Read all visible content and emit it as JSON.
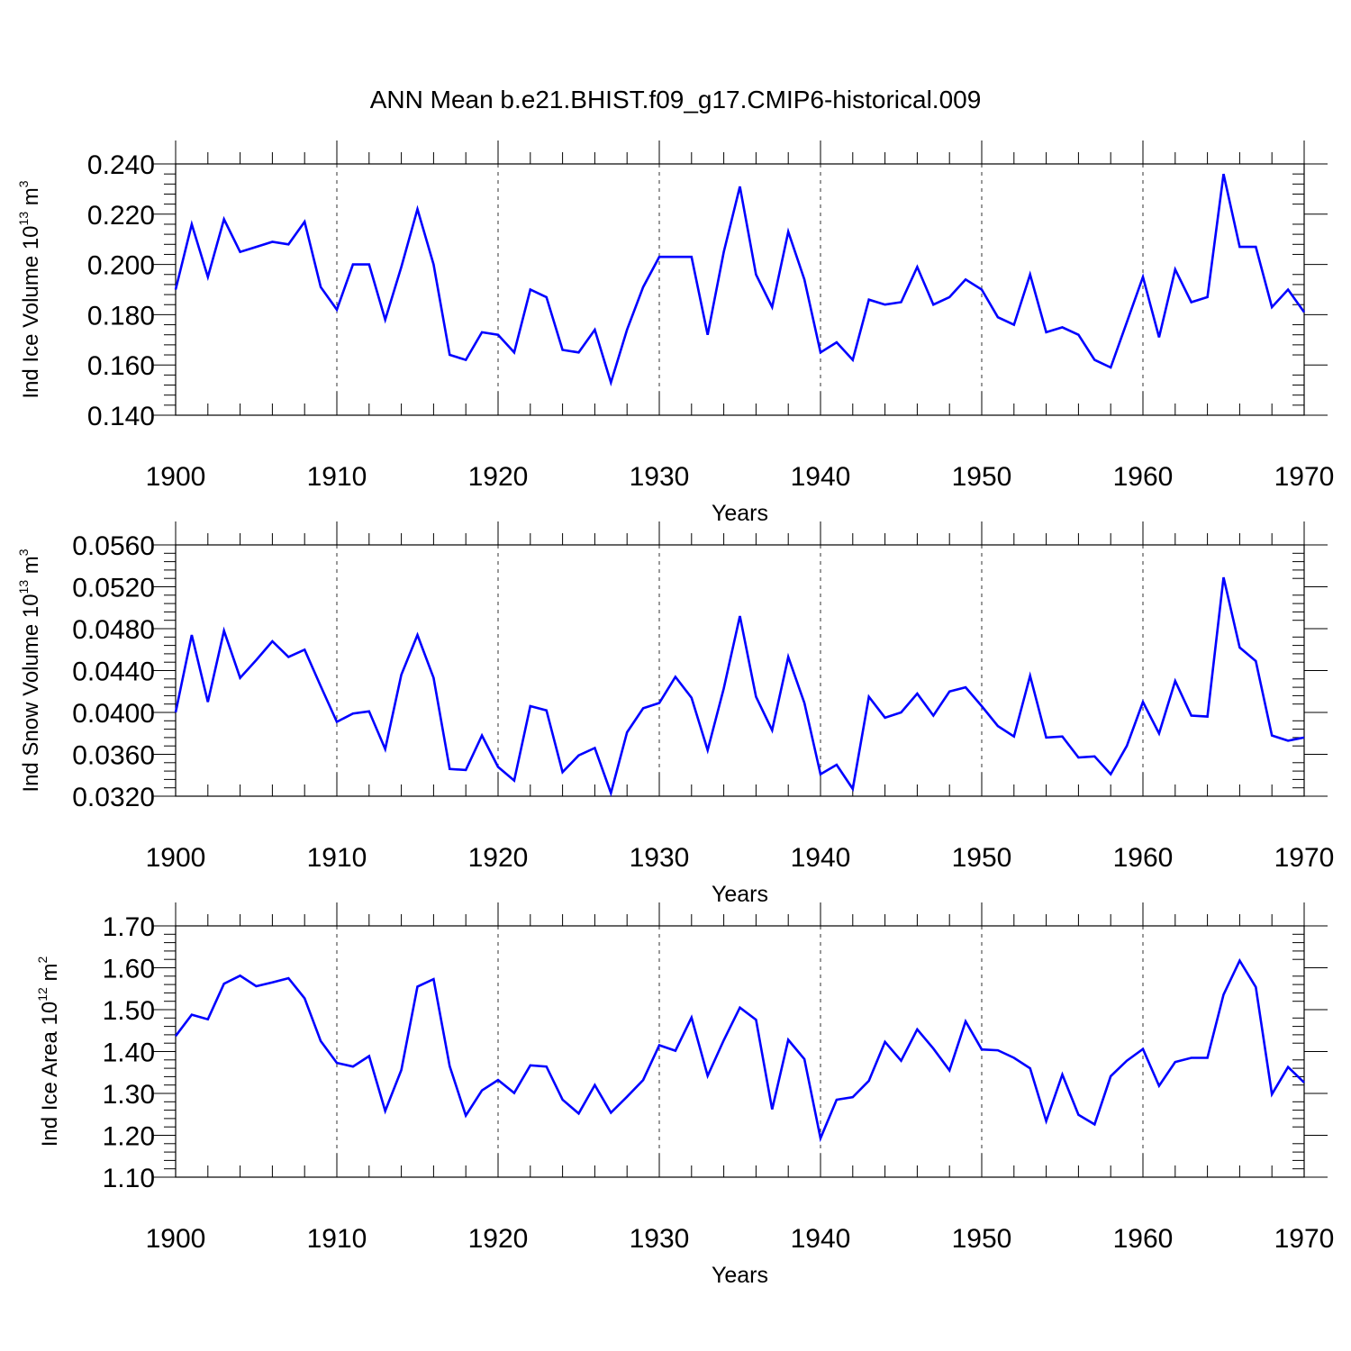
{
  "title": "ANN Mean b.e21.BHIST.f09_g17.CMIP6-historical.009",
  "colors": {
    "line": "#0000ff",
    "axis": "#000000",
    "grid": "#000000"
  },
  "chart_data": [
    {
      "type": "line",
      "title": "ANN Mean b.e21.BHIST.f09_g17.CMIP6-historical.009",
      "xlabel": "Years",
      "ylabel": {
        "base": "Ind Ice Volume 10",
        "sup1": "13",
        "mid": " m",
        "sup2": "3"
      },
      "xlim": [
        1900,
        1970
      ],
      "ylim": [
        0.14,
        0.24
      ],
      "xticks": [
        "1900",
        "1910",
        "1920",
        "1930",
        "1940",
        "1950",
        "1960",
        "1970"
      ],
      "yticks": [
        "0.140",
        "0.160",
        "0.180",
        "0.200",
        "0.220",
        "0.240"
      ],
      "grid": "vertical dashed at major x ticks",
      "x": [
        1900,
        1901,
        1902,
        1903,
        1904,
        1905,
        1906,
        1907,
        1908,
        1909,
        1910,
        1911,
        1912,
        1913,
        1914,
        1915,
        1916,
        1917,
        1918,
        1919,
        1920,
        1921,
        1922,
        1923,
        1924,
        1925,
        1926,
        1927,
        1928,
        1929,
        1930,
        1931,
        1932,
        1933,
        1934,
        1935,
        1936,
        1937,
        1938,
        1939,
        1940,
        1941,
        1942,
        1943,
        1944,
        1945,
        1946,
        1947,
        1948,
        1949,
        1950,
        1951,
        1952,
        1953,
        1954,
        1955,
        1956,
        1957,
        1958,
        1959,
        1960,
        1961,
        1962,
        1963,
        1964,
        1965,
        1966,
        1967,
        1968,
        1969,
        1970
      ],
      "series": [
        {
          "name": "Ind Ice Volume",
          "values": [
            0.19,
            0.216,
            0.195,
            0.218,
            0.205,
            0.207,
            0.209,
            0.208,
            0.217,
            0.191,
            0.182,
            0.2,
            0.2,
            0.178,
            0.199,
            0.222,
            0.2,
            0.164,
            0.162,
            0.173,
            0.172,
            0.165,
            0.19,
            0.187,
            0.166,
            0.165,
            0.174,
            0.153,
            0.174,
            0.191,
            0.203,
            0.203,
            0.203,
            0.172,
            0.205,
            0.231,
            0.196,
            0.183,
            0.213,
            0.194,
            0.165,
            0.169,
            0.162,
            0.186,
            0.184,
            0.185,
            0.199,
            0.184,
            0.187,
            0.194,
            0.19,
            0.179,
            0.176,
            0.196,
            0.173,
            0.175,
            0.172,
            0.162,
            0.159,
            0.177,
            0.195,
            0.171,
            0.198,
            0.185,
            0.187,
            0.236,
            0.207,
            0.207,
            0.183,
            0.19,
            0.181
          ]
        }
      ]
    },
    {
      "type": "line",
      "xlabel": "Years",
      "ylabel": {
        "base": "Ind Snow Volume 10",
        "sup1": "13",
        "mid": " m",
        "sup2": "3"
      },
      "xlim": [
        1900,
        1970
      ],
      "ylim": [
        0.032,
        0.056
      ],
      "xticks": [
        "1900",
        "1910",
        "1920",
        "1930",
        "1940",
        "1950",
        "1960",
        "1970"
      ],
      "yticks": [
        "0.0320",
        "0.0360",
        "0.0400",
        "0.0440",
        "0.0480",
        "0.0520",
        "0.0560"
      ],
      "grid": "vertical dashed at major x ticks",
      "x": [
        1900,
        1901,
        1902,
        1903,
        1904,
        1905,
        1906,
        1907,
        1908,
        1909,
        1910,
        1911,
        1912,
        1913,
        1914,
        1915,
        1916,
        1917,
        1918,
        1919,
        1920,
        1921,
        1922,
        1923,
        1924,
        1925,
        1926,
        1927,
        1928,
        1929,
        1930,
        1931,
        1932,
        1933,
        1934,
        1935,
        1936,
        1937,
        1938,
        1939,
        1940,
        1941,
        1942,
        1943,
        1944,
        1945,
        1946,
        1947,
        1948,
        1949,
        1950,
        1951,
        1952,
        1953,
        1954,
        1955,
        1956,
        1957,
        1958,
        1959,
        1960,
        1961,
        1962,
        1963,
        1964,
        1965,
        1966,
        1967,
        1968,
        1969,
        1970
      ],
      "series": [
        {
          "name": "Ind Snow Volume",
          "values": [
            0.04,
            0.0474,
            0.041,
            0.0478,
            0.0433,
            0.045,
            0.0468,
            0.0453,
            0.046,
            0.0425,
            0.0391,
            0.0399,
            0.0401,
            0.0365,
            0.0436,
            0.0474,
            0.0433,
            0.0346,
            0.0345,
            0.0378,
            0.0348,
            0.0335,
            0.0406,
            0.0402,
            0.0343,
            0.0359,
            0.0366,
            0.0323,
            0.0381,
            0.0404,
            0.0409,
            0.0434,
            0.0414,
            0.0364,
            0.0423,
            0.0492,
            0.0415,
            0.0383,
            0.0453,
            0.0409,
            0.0341,
            0.035,
            0.0327,
            0.0415,
            0.0395,
            0.04,
            0.0418,
            0.0397,
            0.042,
            0.0424,
            0.0406,
            0.0387,
            0.0377,
            0.0435,
            0.0376,
            0.0377,
            0.0357,
            0.0358,
            0.0341,
            0.0368,
            0.041,
            0.038,
            0.043,
            0.0397,
            0.0396,
            0.0529,
            0.0462,
            0.0449,
            0.0378,
            0.0373,
            0.0376
          ]
        }
      ]
    },
    {
      "type": "line",
      "xlabel": "Years",
      "ylabel": {
        "base": "Ind Ice Area 10",
        "sup1": "12",
        "mid": " m",
        "sup2": "2"
      },
      "xlim": [
        1900,
        1970
      ],
      "ylim": [
        1.1,
        1.7
      ],
      "xticks": [
        "1900",
        "1910",
        "1920",
        "1930",
        "1940",
        "1950",
        "1960",
        "1970"
      ],
      "yticks": [
        "1.10",
        "1.20",
        "1.30",
        "1.40",
        "1.50",
        "1.60",
        "1.70"
      ],
      "grid": "vertical dashed at major x ticks",
      "x": [
        1900,
        1901,
        1902,
        1903,
        1904,
        1905,
        1906,
        1907,
        1908,
        1909,
        1910,
        1911,
        1912,
        1913,
        1914,
        1915,
        1916,
        1917,
        1918,
        1919,
        1920,
        1921,
        1922,
        1923,
        1924,
        1925,
        1926,
        1927,
        1928,
        1929,
        1930,
        1931,
        1932,
        1933,
        1934,
        1935,
        1936,
        1937,
        1938,
        1939,
        1940,
        1941,
        1942,
        1943,
        1944,
        1945,
        1946,
        1947,
        1948,
        1949,
        1950,
        1951,
        1952,
        1953,
        1954,
        1955,
        1956,
        1957,
        1958,
        1959,
        1960,
        1961,
        1962,
        1963,
        1964,
        1965,
        1966,
        1967,
        1968,
        1969,
        1970
      ],
      "series": [
        {
          "name": "Ind Ice Area",
          "values": [
            1.437,
            1.488,
            1.477,
            1.562,
            1.581,
            1.556,
            1.565,
            1.575,
            1.527,
            1.425,
            1.373,
            1.364,
            1.389,
            1.258,
            1.356,
            1.555,
            1.573,
            1.365,
            1.247,
            1.307,
            1.332,
            1.301,
            1.367,
            1.364,
            1.285,
            1.252,
            1.32,
            1.254,
            1.292,
            1.332,
            1.415,
            1.402,
            1.481,
            1.342,
            1.427,
            1.505,
            1.476,
            1.262,
            1.428,
            1.382,
            1.193,
            1.285,
            1.291,
            1.33,
            1.423,
            1.378,
            1.453,
            1.407,
            1.355,
            1.472,
            1.405,
            1.403,
            1.385,
            1.36,
            1.234,
            1.345,
            1.249,
            1.226,
            1.341,
            1.378,
            1.406,
            1.318,
            1.375,
            1.385,
            1.385,
            1.536,
            1.617,
            1.554,
            1.298,
            1.363,
            1.326
          ]
        }
      ]
    }
  ]
}
